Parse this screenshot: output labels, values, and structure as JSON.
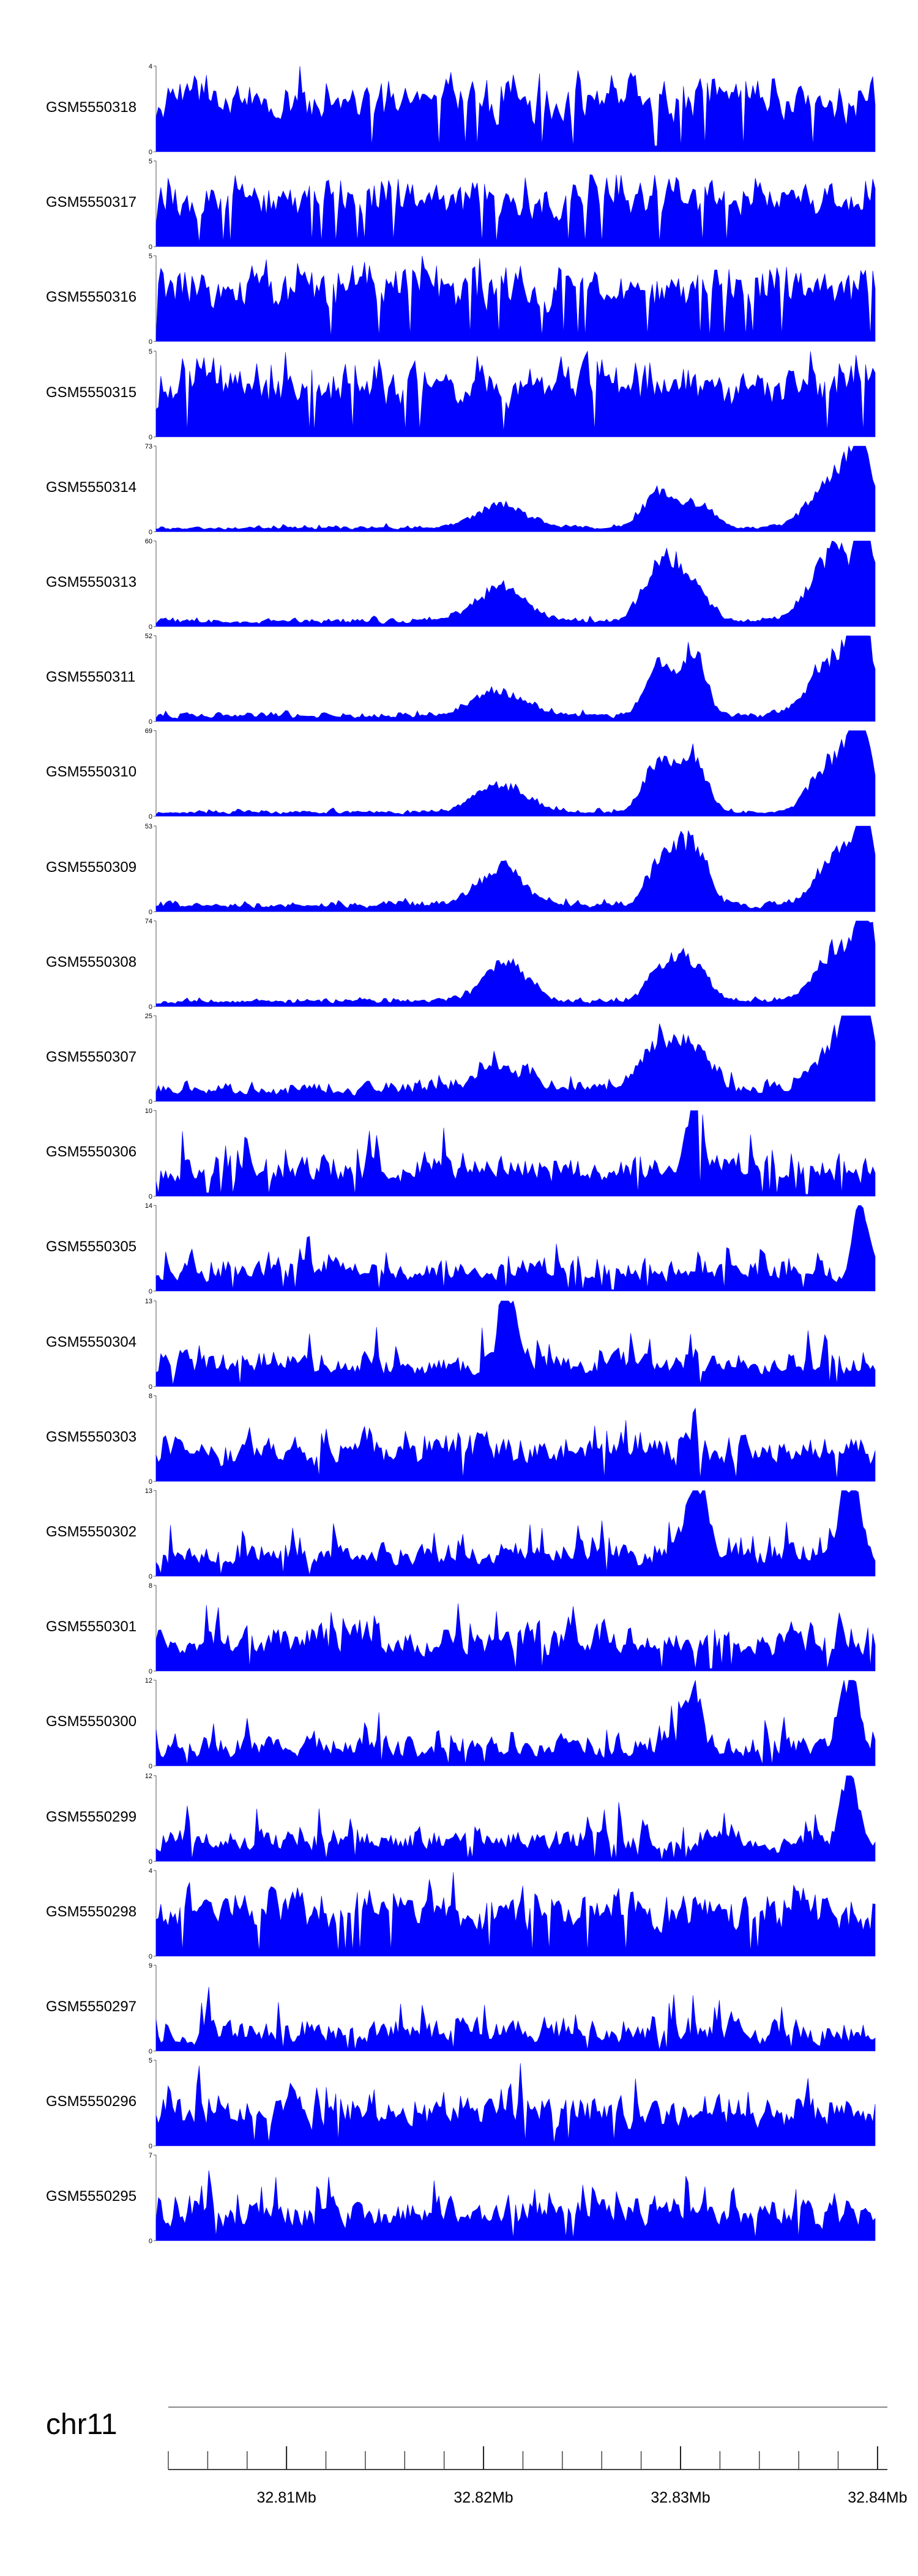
{
  "colors": {
    "track_fill": "#0000ff",
    "axis": "#555555",
    "text": "#000000"
  },
  "chart_data": {
    "type": "area",
    "x_range": [
      32.804,
      32.8405
    ],
    "x_unit": "Mb",
    "chromosome": "chr11",
    "genome_ticks": [
      "32.81Mb",
      "32.82Mb",
      "32.83Mb",
      "32.84Mb"
    ],
    "genome_tick_values": [
      32.81,
      32.82,
      32.83,
      32.84
    ],
    "series": [
      {
        "name": "GSM5550318",
        "ymax": "4",
        "ymin": "0",
        "pattern": "noise",
        "seed": 318,
        "base": 0.45,
        "amp": 0.4,
        "spike": 0.35
      },
      {
        "name": "GSM5550317",
        "ymax": "5",
        "ymin": "0",
        "pattern": "noise",
        "seed": 317,
        "base": 0.42,
        "amp": 0.38,
        "spike": 0.3
      },
      {
        "name": "GSM5550316",
        "ymax": "5",
        "ymin": "0",
        "pattern": "noise",
        "seed": 316,
        "base": 0.5,
        "amp": 0.35,
        "spike": 0.3
      },
      {
        "name": "GSM5550315",
        "ymax": "5",
        "ymin": "0",
        "pattern": "noise",
        "seed": 315,
        "base": 0.48,
        "amp": 0.38,
        "spike": 0.3
      },
      {
        "name": "GSM5550314",
        "ymax": "73",
        "ymin": "0",
        "pattern": "peaks",
        "seed": 314,
        "base": 0.03,
        "amp": 0.04,
        "spike": 0.04,
        "peaks": [
          [
            32.8215,
            0.28,
            0.0013
          ],
          [
            32.8295,
            0.45,
            0.0008
          ],
          [
            32.8315,
            0.3,
            0.0008
          ],
          [
            32.8385,
            0.65,
            0.0012
          ],
          [
            32.8398,
            0.95,
            0.0005
          ]
        ]
      },
      {
        "name": "GSM5550313",
        "ymax": "60",
        "ymin": "0",
        "pattern": "peaks",
        "seed": 313,
        "base": 0.04,
        "amp": 0.06,
        "spike": 0.05,
        "peaks": [
          [
            32.8215,
            0.42,
            0.0013
          ],
          [
            32.8295,
            0.65,
            0.0008
          ],
          [
            32.831,
            0.5,
            0.0009
          ],
          [
            32.8385,
            0.85,
            0.0012
          ],
          [
            32.84,
            0.95,
            0.0004
          ]
        ]
      },
      {
        "name": "GSM5550311",
        "ymax": "52",
        "ymin": "0",
        "pattern": "peaks",
        "seed": 311,
        "base": 0.04,
        "amp": 0.07,
        "spike": 0.06,
        "peaks": [
          [
            32.8215,
            0.3,
            0.0014
          ],
          [
            32.8295,
            0.6,
            0.0007
          ],
          [
            32.8313,
            0.8,
            0.0006
          ],
          [
            32.8385,
            0.75,
            0.0012
          ],
          [
            32.8398,
            0.95,
            0.0005
          ]
        ]
      },
      {
        "name": "GSM5550310",
        "ymax": "69",
        "ymin": "0",
        "pattern": "peaks",
        "seed": 310,
        "base": 0.03,
        "amp": 0.05,
        "spike": 0.04,
        "peaks": [
          [
            32.8215,
            0.35,
            0.0013
          ],
          [
            32.8295,
            0.65,
            0.0007
          ],
          [
            32.8312,
            0.7,
            0.0007
          ],
          [
            32.8385,
            0.7,
            0.0011
          ],
          [
            32.8398,
            0.98,
            0.0005
          ]
        ]
      },
      {
        "name": "GSM5550309",
        "ymax": "53",
        "ymin": "0",
        "pattern": "peaks",
        "seed": 309,
        "base": 0.05,
        "amp": 0.08,
        "spike": 0.06,
        "peaks": [
          [
            32.8215,
            0.45,
            0.0012
          ],
          [
            32.8298,
            0.6,
            0.0008
          ],
          [
            32.8313,
            0.7,
            0.0007
          ],
          [
            32.8388,
            0.7,
            0.0011
          ],
          [
            32.84,
            0.98,
            0.0004
          ]
        ]
      },
      {
        "name": "GSM5550308",
        "ymax": "74",
        "ymin": "0",
        "pattern": "peaks",
        "seed": 308,
        "base": 0.04,
        "amp": 0.06,
        "spike": 0.05,
        "peaks": [
          [
            32.8218,
            0.5,
            0.0011
          ],
          [
            32.8298,
            0.45,
            0.0008
          ],
          [
            32.8313,
            0.42,
            0.0008
          ],
          [
            32.8388,
            0.7,
            0.0012
          ],
          [
            32.84,
            0.98,
            0.0004
          ]
        ]
      },
      {
        "name": "GSM5550307",
        "ymax": "25",
        "ymin": "0",
        "pattern": "peaks",
        "seed": 307,
        "base": 0.08,
        "amp": 0.18,
        "spike": 0.15,
        "peaks": [
          [
            32.8215,
            0.3,
            0.0012
          ],
          [
            32.8295,
            0.55,
            0.0009
          ],
          [
            32.8313,
            0.5,
            0.0008
          ],
          [
            32.8388,
            0.65,
            0.0012
          ],
          [
            32.8398,
            0.98,
            0.0005
          ]
        ]
      },
      {
        "name": "GSM5550306",
        "ymax": "10",
        "ymin": "0",
        "pattern": "noise",
        "seed": 306,
        "base": 0.18,
        "amp": 0.35,
        "spike": 0.45,
        "peaks": [
          [
            32.8313,
            0.9,
            0.0004
          ]
        ]
      },
      {
        "name": "GSM5550305",
        "ymax": "14",
        "ymin": "0",
        "pattern": "noise",
        "seed": 305,
        "base": 0.12,
        "amp": 0.3,
        "spike": 0.35,
        "peaks": [
          [
            32.8398,
            0.95,
            0.0004
          ]
        ]
      },
      {
        "name": "GSM5550304",
        "ymax": "13",
        "ymin": "0",
        "pattern": "noise",
        "seed": 304,
        "base": 0.14,
        "amp": 0.32,
        "spike": 0.4,
        "peaks": [
          [
            32.8218,
            0.95,
            0.0004
          ]
        ]
      },
      {
        "name": "GSM5550303",
        "ymax": "8",
        "ymin": "0",
        "pattern": "noise",
        "seed": 303,
        "base": 0.22,
        "amp": 0.38,
        "spike": 0.4
      },
      {
        "name": "GSM5550302",
        "ymax": "13",
        "ymin": "0",
        "pattern": "noise",
        "seed": 302,
        "base": 0.12,
        "amp": 0.3,
        "spike": 0.4,
        "peaks": [
          [
            32.8313,
            0.8,
            0.0006
          ],
          [
            32.8392,
            0.95,
            0.0005
          ]
        ]
      },
      {
        "name": "GSM5550301",
        "ymax": "8",
        "ymin": "0",
        "pattern": "noise",
        "seed": 301,
        "base": 0.2,
        "amp": 0.4,
        "spike": 0.45
      },
      {
        "name": "GSM5550300",
        "ymax": "12",
        "ymin": "0",
        "pattern": "noise",
        "seed": 300,
        "base": 0.1,
        "amp": 0.3,
        "spike": 0.4,
        "peaks": [
          [
            32.8313,
            0.85,
            0.0004
          ],
          [
            32.8392,
            0.95,
            0.0005
          ]
        ]
      },
      {
        "name": "GSM5550299",
        "ymax": "12",
        "ymin": "0",
        "pattern": "noise",
        "seed": 299,
        "base": 0.12,
        "amp": 0.3,
        "spike": 0.4,
        "peaks": [
          [
            32.8392,
            0.95,
            0.0004
          ]
        ]
      },
      {
        "name": "GSM5550298",
        "ymax": "4",
        "ymin": "0",
        "pattern": "noise",
        "seed": 298,
        "base": 0.35,
        "amp": 0.45,
        "spike": 0.4
      },
      {
        "name": "GSM5550297",
        "ymax": "9",
        "ymin": "0",
        "pattern": "noise",
        "seed": 297,
        "base": 0.08,
        "amp": 0.35,
        "spike": 0.55
      },
      {
        "name": "GSM5550296",
        "ymax": "5",
        "ymin": "0",
        "pattern": "noise",
        "seed": 296,
        "base": 0.25,
        "amp": 0.4,
        "spike": 0.45
      },
      {
        "name": "GSM5550295",
        "ymax": "7",
        "ymin": "0",
        "pattern": "noise",
        "seed": 295,
        "base": 0.18,
        "amp": 0.38,
        "spike": 0.5
      }
    ]
  }
}
